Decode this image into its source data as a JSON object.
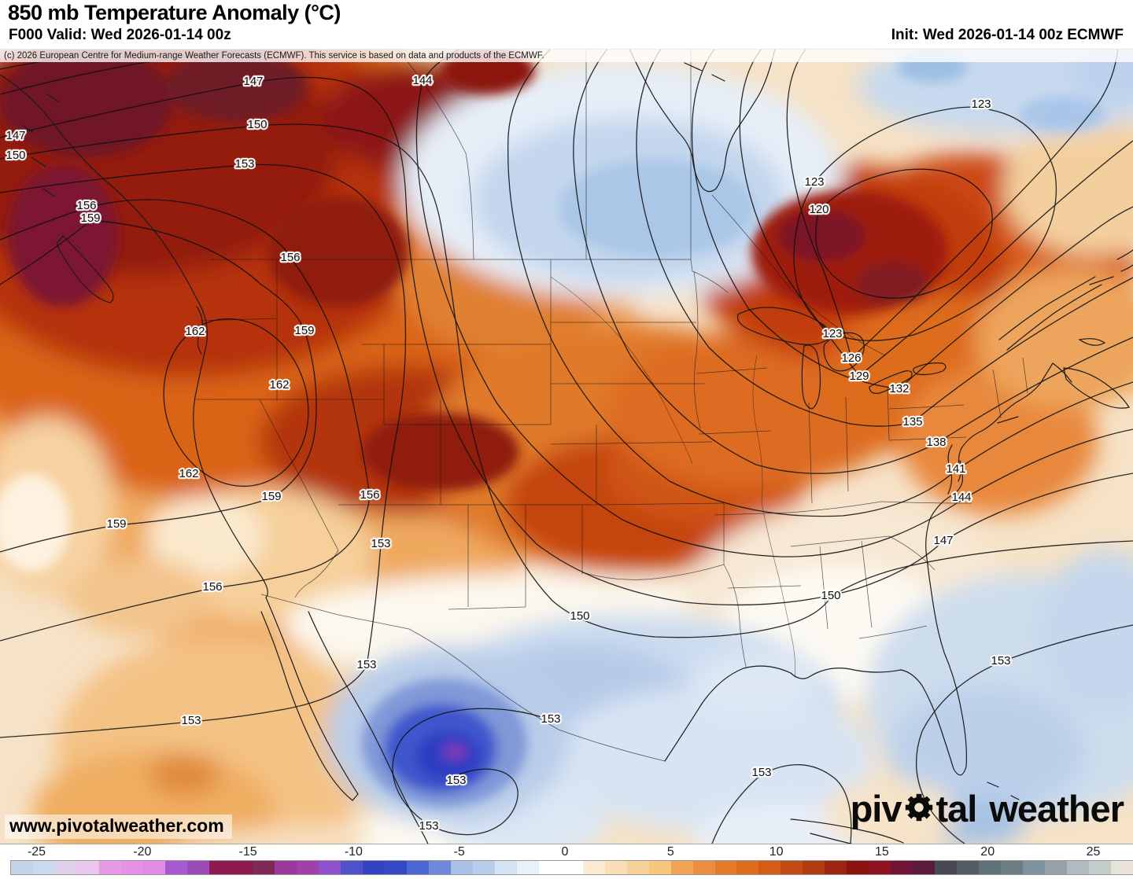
{
  "header": {
    "title": "850 mb Temperature Anomaly (°C)",
    "valid": "F000 Valid: Wed 2026-01-14 00z",
    "init": "Init: Wed 2026-01-14 00z ECMWF",
    "copyright": "(c) 2026 European Centre for Medium-range Weather Forecasts (ECMWF). This service is based on data and products of the ECMWF."
  },
  "watermark": "www.pivotalweather.com",
  "logo": {
    "pre": "piv",
    "mid": "tal",
    "word2": "weather",
    "gear_icon": "gear"
  },
  "map": {
    "contour_labels": [
      [
        147,
        322,
        103
      ],
      [
        144,
        537,
        102
      ],
      [
        123,
        1247,
        132
      ],
      [
        147,
        20,
        172
      ],
      [
        150,
        20,
        197
      ],
      [
        150,
        327,
        158
      ],
      [
        153,
        311,
        208
      ],
      [
        156,
        110,
        261
      ],
      [
        159,
        115,
        277
      ],
      [
        123,
        1035,
        231
      ],
      [
        120,
        1041,
        266
      ],
      [
        156,
        369,
        327
      ],
      [
        159,
        387,
        420
      ],
      [
        162,
        248,
        421
      ],
      [
        123,
        1058,
        424
      ],
      [
        126,
        1082,
        455
      ],
      [
        129,
        1092,
        478
      ],
      [
        132,
        1143,
        494
      ],
      [
        162,
        355,
        489
      ],
      [
        135,
        1160,
        536
      ],
      [
        138,
        1190,
        562
      ],
      [
        141,
        1215,
        596
      ],
      [
        162,
        240,
        602
      ],
      [
        159,
        345,
        631
      ],
      [
        156,
        470,
        629
      ],
      [
        144,
        1222,
        632
      ],
      [
        159,
        148,
        666
      ],
      [
        147,
        1199,
        687
      ],
      [
        153,
        484,
        691
      ],
      [
        156,
        270,
        746
      ],
      [
        150,
        737,
        783
      ],
      [
        150,
        1056,
        757
      ],
      [
        153,
        466,
        845
      ],
      [
        153,
        1272,
        840
      ],
      [
        153,
        700,
        914
      ],
      [
        153,
        243,
        916
      ],
      [
        153,
        968,
        982
      ],
      [
        153,
        580,
        992
      ],
      [
        153,
        545,
        1050
      ]
    ]
  },
  "colorbar": {
    "ticks": [
      -25,
      -20,
      -15,
      -10,
      -5,
      0,
      5,
      10,
      15,
      20,
      25
    ],
    "colors": [
      "#c2d4ea",
      "#c9daee",
      "#e0d0eb",
      "#eac8ee",
      "#e69ae8",
      "#e392e6",
      "#e18ce4",
      "#a55ad2",
      "#9b4bb4",
      "#8e1a52",
      "#8c1a4e",
      "#7c2a55",
      "#9a3a9a",
      "#a040aa",
      "#8f52cc",
      "#4e51c8",
      "#3343c4",
      "#3448c6",
      "#4c66d2",
      "#6e89da",
      "#a9c0e6",
      "#b7cdea",
      "#d5e2f3",
      "#e9f0f9",
      "#ffffff",
      "#ffffff",
      "#fcecd3",
      "#f9dfb8",
      "#f7d09a",
      "#f9c67e",
      "#f0a255",
      "#ea8f42",
      "#e37b2a",
      "#dd6c1c",
      "#d45c16",
      "#c24a14",
      "#b03a12",
      "#9c2410",
      "#8c1410",
      "#8e1422",
      "#701535",
      "#5a1a3c",
      "#474852",
      "#565c63",
      "#5c7178",
      "#6d7d81",
      "#7e93a0",
      "#99a1a5",
      "#b3b9bd",
      "#c5cacd",
      "#e7e3da"
    ]
  }
}
